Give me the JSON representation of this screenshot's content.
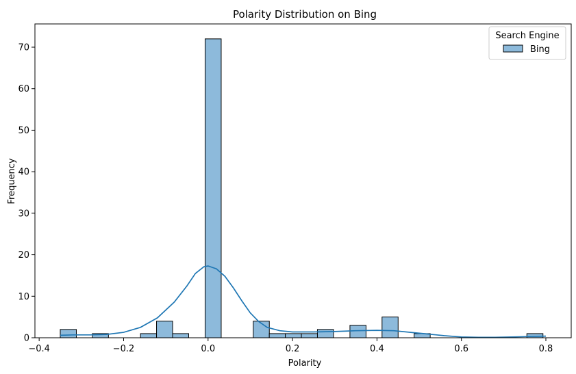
{
  "chart_data": {
    "type": "bar",
    "title": "Polarity Distribution on Bing",
    "xlabel": "Polarity",
    "ylabel": "Frequency",
    "xlim": [
      -0.41,
      0.86
    ],
    "ylim": [
      0,
      75.6
    ],
    "xticks": [
      -0.4,
      -0.2,
      0.0,
      0.2,
      0.4,
      0.6,
      0.8
    ],
    "xtick_labels": [
      "−0.4",
      "−0.2",
      "0.0",
      "0.2",
      "0.4",
      "0.6",
      "0.8"
    ],
    "yticks": [
      0,
      10,
      20,
      30,
      40,
      50,
      60,
      70
    ],
    "ytick_labels": [
      "0",
      "10",
      "20",
      "30",
      "40",
      "50",
      "60",
      "70"
    ],
    "grid": false,
    "legend": {
      "title": "Search Engine",
      "placement": "top-right",
      "entries": [
        "Bing"
      ]
    },
    "bar_color": "#8dbadb",
    "line_color": "#1f77b4",
    "bin_width": 0.0381,
    "bins": [
      {
        "left": -0.35,
        "count": 2
      },
      {
        "left": -0.312,
        "count": 0
      },
      {
        "left": -0.274,
        "count": 1
      },
      {
        "left": -0.236,
        "count": 0
      },
      {
        "left": -0.198,
        "count": 0
      },
      {
        "left": -0.16,
        "count": 1
      },
      {
        "left": -0.122,
        "count": 4
      },
      {
        "left": -0.084,
        "count": 1
      },
      {
        "left": -0.045,
        "count": 0
      },
      {
        "left": -0.007,
        "count": 72
      },
      {
        "left": 0.031,
        "count": 0
      },
      {
        "left": 0.069,
        "count": 0
      },
      {
        "left": 0.107,
        "count": 4
      },
      {
        "left": 0.145,
        "count": 1
      },
      {
        "left": 0.183,
        "count": 1
      },
      {
        "left": 0.221,
        "count": 1
      },
      {
        "left": 0.259,
        "count": 2
      },
      {
        "left": 0.297,
        "count": 0
      },
      {
        "left": 0.336,
        "count": 3
      },
      {
        "left": 0.374,
        "count": 0
      },
      {
        "left": 0.412,
        "count": 5
      },
      {
        "left": 0.45,
        "count": 0
      },
      {
        "left": 0.488,
        "count": 1
      },
      {
        "left": 0.526,
        "count": 0
      },
      {
        "left": 0.564,
        "count": 0
      },
      {
        "left": 0.602,
        "count": 0
      },
      {
        "left": 0.64,
        "count": 0
      },
      {
        "left": 0.678,
        "count": 0
      },
      {
        "left": 0.716,
        "count": 0
      },
      {
        "left": 0.755,
        "count": 1
      }
    ],
    "kde": [
      [
        -0.35,
        0.6
      ],
      [
        -0.32,
        0.7
      ],
      [
        -0.28,
        0.7
      ],
      [
        -0.24,
        0.8
      ],
      [
        -0.2,
        1.3
      ],
      [
        -0.16,
        2.5
      ],
      [
        -0.12,
        4.8
      ],
      [
        -0.08,
        8.6
      ],
      [
        -0.05,
        12.5
      ],
      [
        -0.03,
        15.5
      ],
      [
        -0.01,
        17.1
      ],
      [
        0.0,
        17.3
      ],
      [
        0.02,
        16.6
      ],
      [
        0.04,
        14.8
      ],
      [
        0.06,
        12.0
      ],
      [
        0.08,
        8.9
      ],
      [
        0.1,
        6.0
      ],
      [
        0.12,
        3.9
      ],
      [
        0.14,
        2.5
      ],
      [
        0.17,
        1.7
      ],
      [
        0.2,
        1.4
      ],
      [
        0.25,
        1.4
      ],
      [
        0.3,
        1.5
      ],
      [
        0.35,
        1.7
      ],
      [
        0.4,
        1.8
      ],
      [
        0.44,
        1.7
      ],
      [
        0.48,
        1.3
      ],
      [
        0.52,
        0.9
      ],
      [
        0.56,
        0.5
      ],
      [
        0.6,
        0.2
      ],
      [
        0.64,
        0.1
      ],
      [
        0.68,
        0.1
      ],
      [
        0.72,
        0.2
      ],
      [
        0.76,
        0.3
      ],
      [
        0.8,
        0.4
      ]
    ]
  }
}
